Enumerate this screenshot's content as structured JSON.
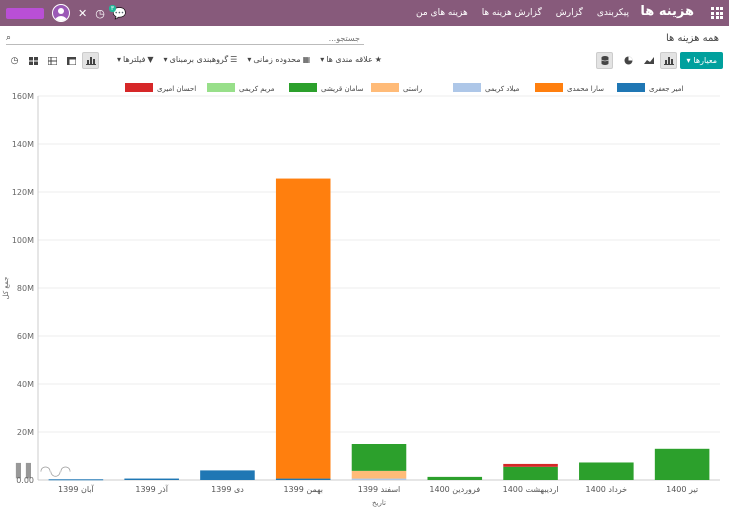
{
  "topbar": {
    "brand": "هزینه ها",
    "menu": [
      "هزینه های من",
      "گزارش هزینه ها",
      "گزارش",
      "پیکربندی"
    ],
    "chat_badge": "۳"
  },
  "breadcrumb": "همه هزینه ها",
  "search": {
    "placeholder": "جستجو..."
  },
  "controls": {
    "measures_label": "معیارها",
    "filters_label": "فیلترها",
    "groupby_label": "گروهبندی برمبنای",
    "daterange_label": "محدوده زمانی",
    "favorites_label": "علاقه مندی ها"
  },
  "chart_data": {
    "type": "bar",
    "stacked": true,
    "categories": [
      "آبان 1399",
      "آذر 1399",
      "دی 1399",
      "بهمن 1399",
      "اسفند 1399",
      "فروردین 1400",
      "اردیبهشت 1400",
      "خرداد 1400",
      "تیر 1400"
    ],
    "ylim": [
      0,
      160
    ],
    "yticks": [
      "0.00",
      "20M",
      "40M",
      "60M",
      "80M",
      "100M",
      "120M",
      "140M",
      "160M"
    ],
    "xlabel": "تاریخ",
    "ylabel": "جمع کل",
    "grid": true,
    "legend_position": "top",
    "series": [
      {
        "name": "امیر جعفری",
        "color": "#1f77b4",
        "values": [
          0.3,
          0.6,
          4.0,
          0.6,
          0,
          0,
          0,
          0,
          0
        ]
      },
      {
        "name": "سارا محمدی",
        "color": "#ff7f0e",
        "values": [
          0,
          0,
          0,
          125,
          0,
          0,
          0,
          0,
          0
        ]
      },
      {
        "name": "میلاد کریمی",
        "color": "#aec7e8",
        "values": [
          0,
          0,
          0,
          0,
          0.6,
          0,
          0,
          0,
          0
        ]
      },
      {
        "name": "راستی",
        "color": "#ffbb78",
        "values": [
          0,
          0,
          0,
          0,
          3.2,
          0,
          0,
          0,
          0
        ]
      },
      {
        "name": "سامان قریشی",
        "color": "#2ca02c",
        "values": [
          0,
          0,
          0,
          0,
          11.2,
          1.3,
          5.5,
          7.3,
          13.0
        ]
      },
      {
        "name": "مریم کریمی",
        "color": "#98df8a",
        "values": [
          0,
          0,
          0,
          0,
          0,
          0,
          0,
          0,
          0
        ]
      },
      {
        "name": "احسان امیری",
        "color": "#d62728",
        "values": [
          0,
          0,
          0,
          0,
          0,
          0,
          1.2,
          0,
          0
        ]
      }
    ]
  }
}
